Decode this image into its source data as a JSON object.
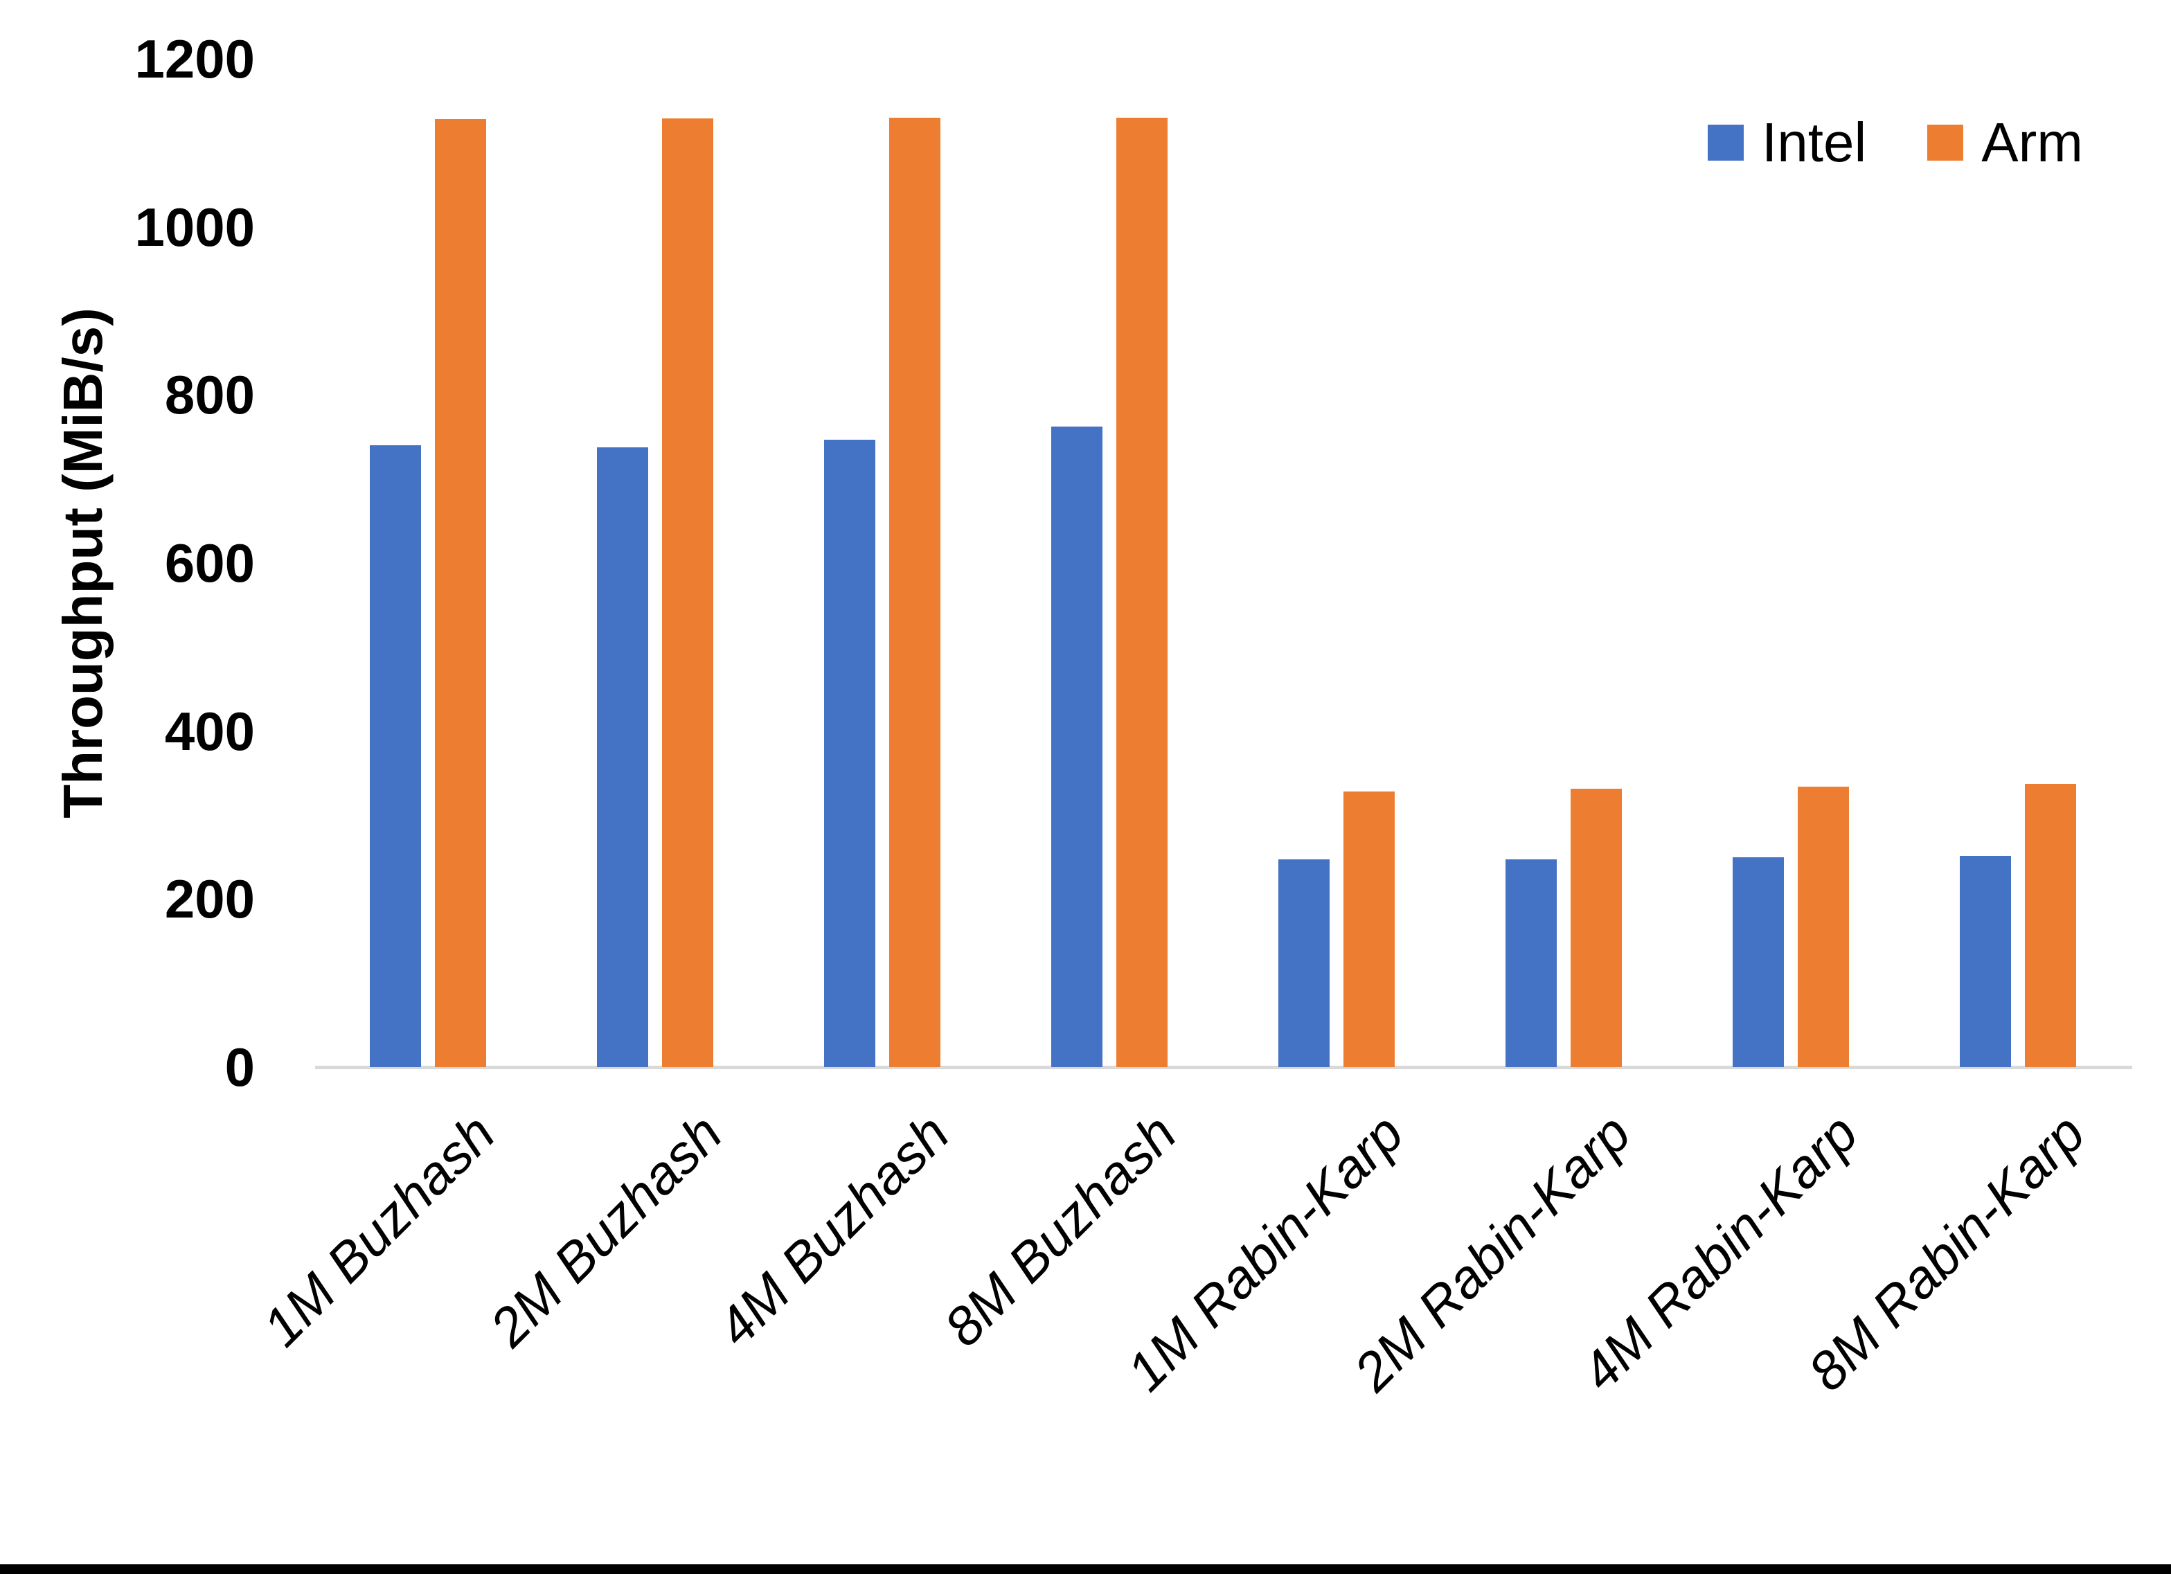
{
  "chart_data": {
    "type": "bar",
    "title": "",
    "ylabel": "Throughput (MiB/s)",
    "xlabel": "",
    "ylim": [
      0,
      1200
    ],
    "yticks": [
      0,
      200,
      400,
      600,
      800,
      1000,
      1200
    ],
    "grid": false,
    "legend_position": "top-right",
    "categories": [
      "1M Buzhash",
      "2M Buzhash",
      "4M Buzhash",
      "8M Buzhash",
      "1M Rabin-Karp",
      "2M Rabin-Karp",
      "4M Rabin-Karp",
      "8M Rabin-Karp"
    ],
    "series": [
      {
        "name": "Intel",
        "color": "#4472C4",
        "values": [
          740,
          738,
          747,
          762,
          247,
          247,
          250,
          251
        ]
      },
      {
        "name": "Arm",
        "color": "#ED7D31",
        "values": [
          1128,
          1129,
          1130,
          1130,
          328,
          331,
          334,
          337
        ]
      }
    ],
    "axis_line_color": "#D9D9D9",
    "text_color": "#000000"
  }
}
